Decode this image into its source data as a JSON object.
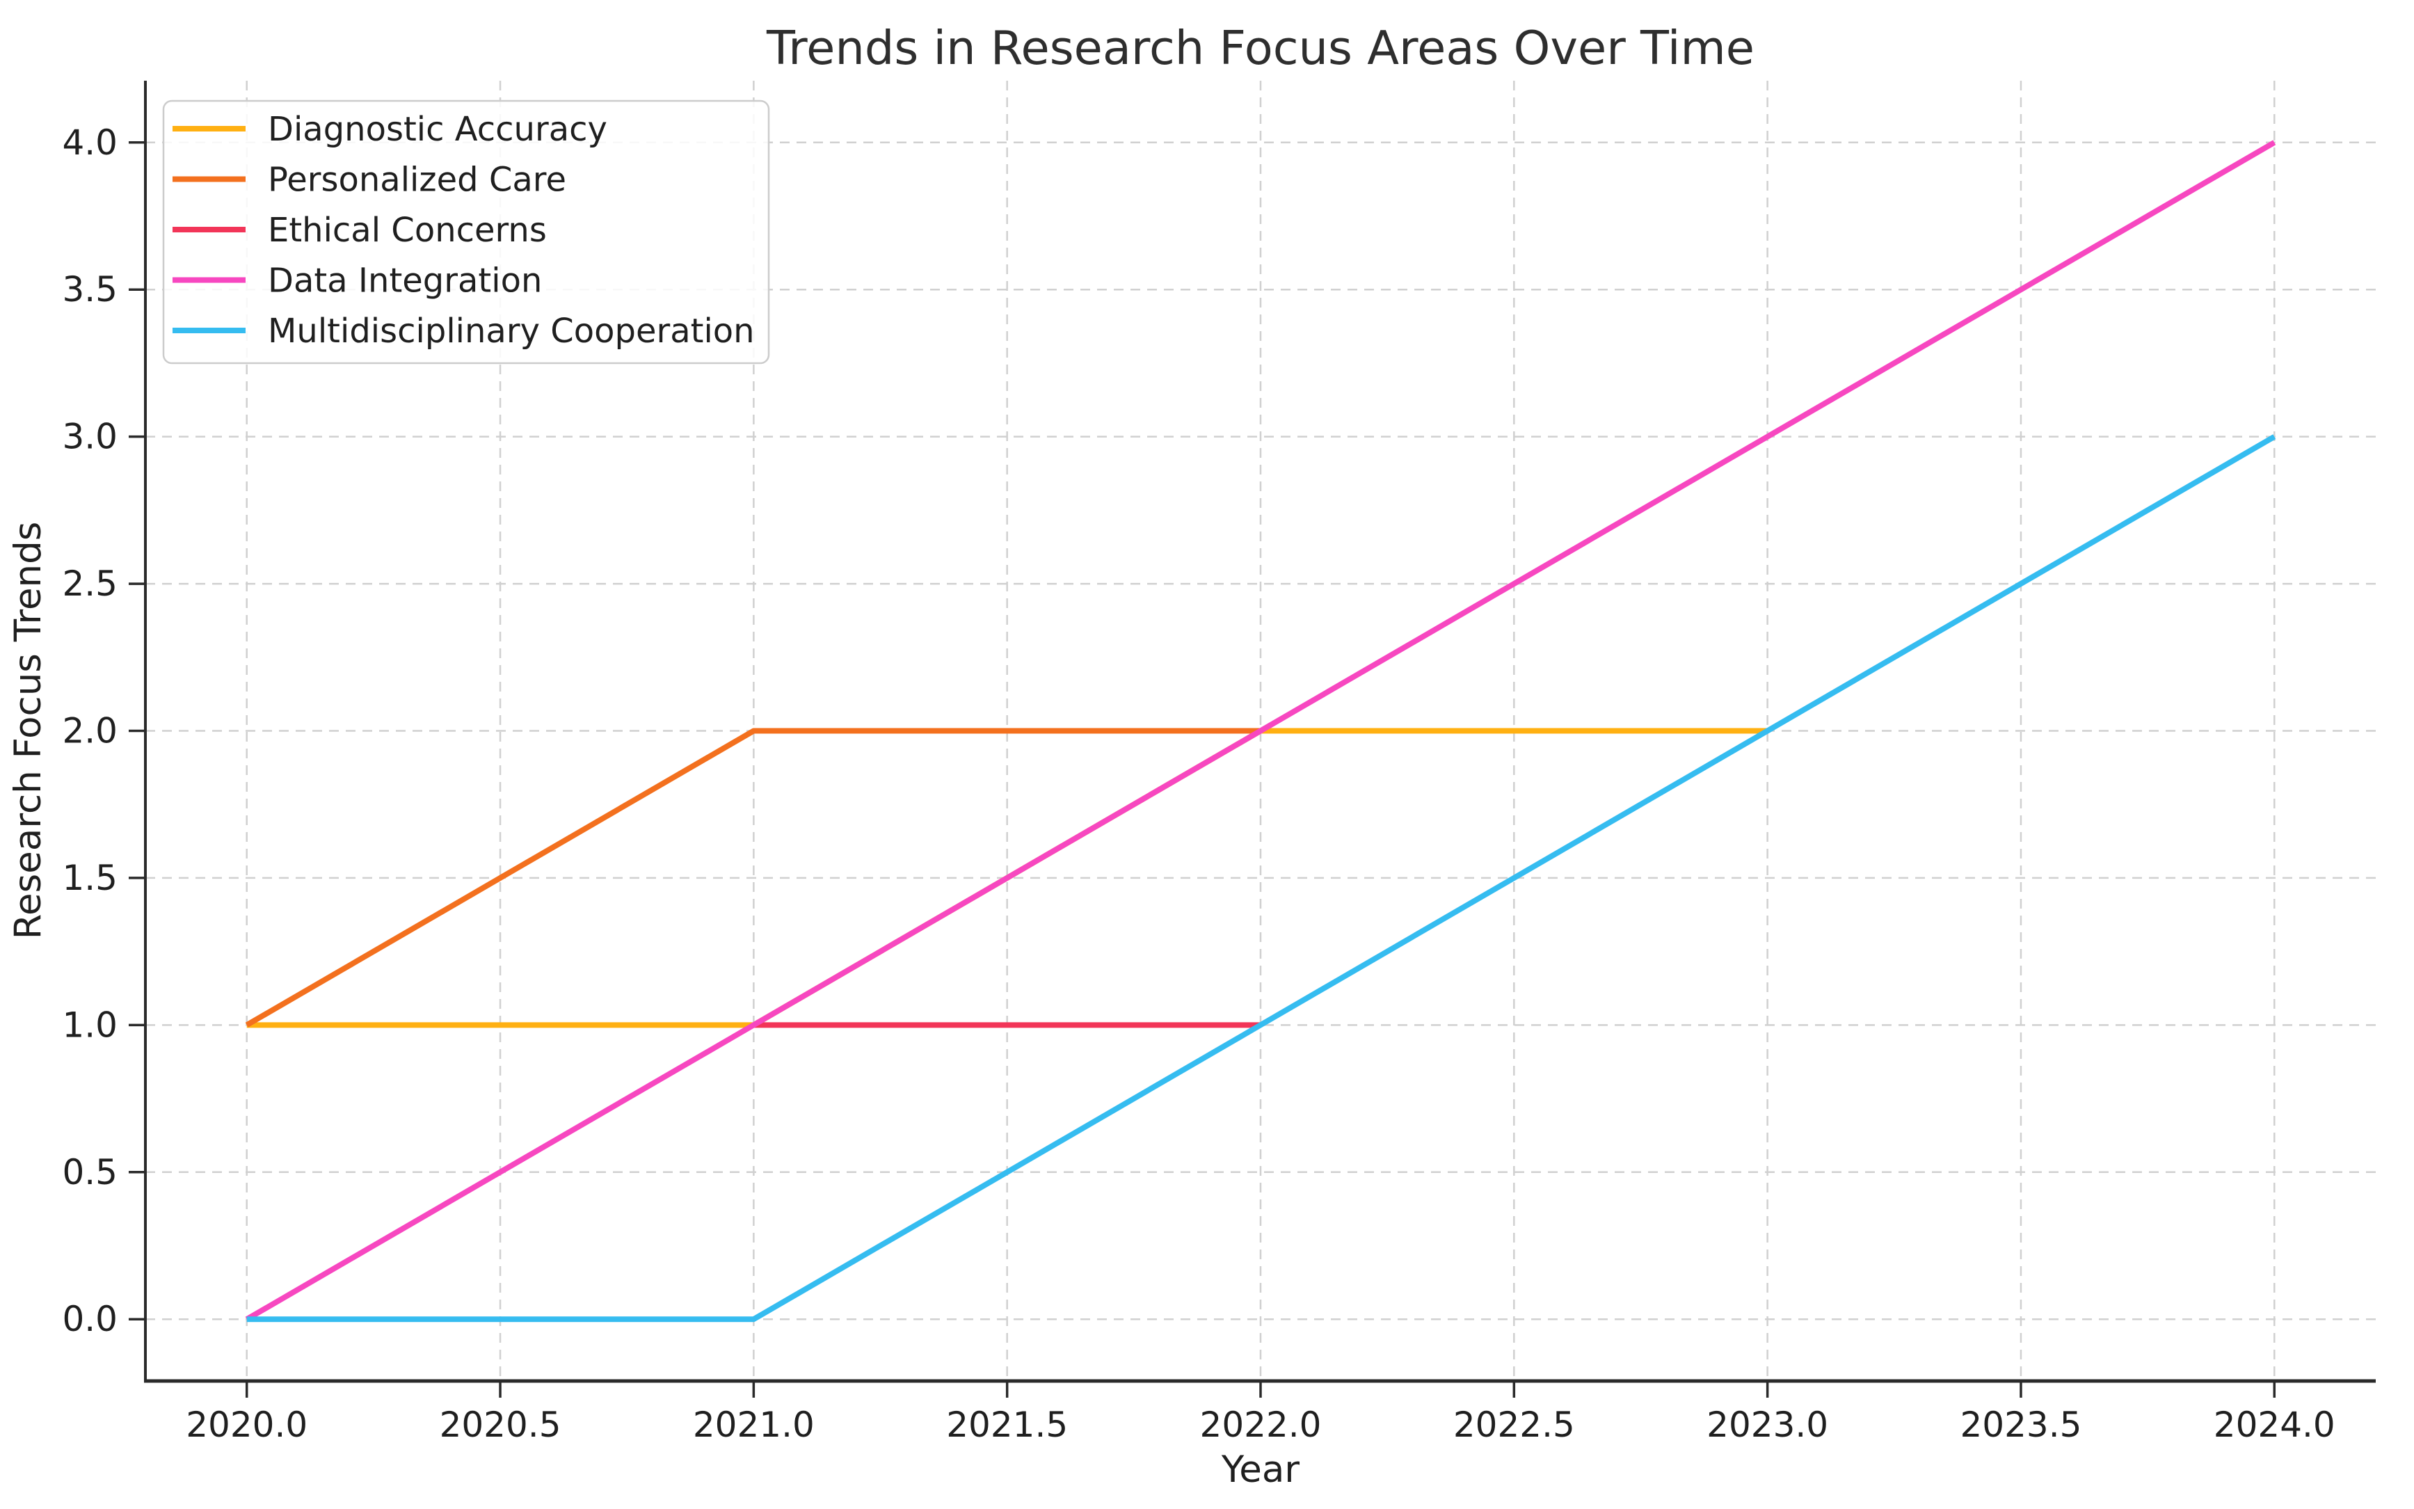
{
  "chart_data": {
    "type": "line",
    "title": "Trends in Research Focus Areas Over Time",
    "xlabel": "Year",
    "ylabel": "Research Focus Trends",
    "xlim": [
      2019.8,
      2024.2
    ],
    "ylim": [
      -0.21,
      4.21
    ],
    "x_tick_values": [
      2020.0,
      2020.5,
      2021.0,
      2021.5,
      2022.0,
      2022.5,
      2023.0,
      2023.5,
      2024.0
    ],
    "x_tick_labels": [
      "2020.0",
      "2020.5",
      "2021.0",
      "2021.5",
      "2022.0",
      "2022.5",
      "2023.0",
      "2023.5",
      "2024.0"
    ],
    "y_tick_values": [
      0.0,
      0.5,
      1.0,
      1.5,
      2.0,
      2.5,
      3.0,
      3.5,
      4.0
    ],
    "y_tick_labels": [
      "0.0",
      "0.5",
      "1.0",
      "1.5",
      "2.0",
      "2.5",
      "3.0",
      "3.5",
      "4.0"
    ],
    "grid": {
      "visible": true,
      "style": "dashed",
      "color": "#d0d0d0"
    },
    "legend": {
      "position": "upper left",
      "entries": [
        "Diagnostic Accuracy",
        "Personalized Care",
        "Ethical Concerns",
        "Data Integration",
        "Multidisciplinary Cooperation"
      ]
    },
    "series": [
      {
        "name": "Diagnostic Accuracy",
        "color": "#FFB012",
        "x": [
          2020,
          2021,
          2022,
          2023
        ],
        "y": [
          1,
          1,
          2,
          2
        ]
      },
      {
        "name": "Personalized Care",
        "color": "#F3701E",
        "x": [
          2020,
          2021,
          2022
        ],
        "y": [
          1,
          2,
          2
        ]
      },
      {
        "name": "Ethical Concerns",
        "color": "#F23558",
        "x": [
          2021,
          2022
        ],
        "y": [
          1,
          1
        ]
      },
      {
        "name": "Data Integration",
        "color": "#F747C0",
        "x": [
          2020,
          2021,
          2022,
          2023,
          2024
        ],
        "y": [
          0,
          1,
          2,
          3,
          4
        ]
      },
      {
        "name": "Multidisciplinary Cooperation",
        "color": "#35BCF0",
        "x": [
          2020,
          2021,
          2022,
          2023,
          2024
        ],
        "y": [
          0,
          0,
          1,
          2,
          3
        ]
      }
    ],
    "colors": {
      "background": "#ffffff",
      "spine": "#2a2a2a",
      "tick": "#2a2a2a",
      "text": "#1f1f1f",
      "title": "#2e2e2e",
      "grid": "#d0d0d0",
      "legend_border": "#cccccc"
    }
  }
}
